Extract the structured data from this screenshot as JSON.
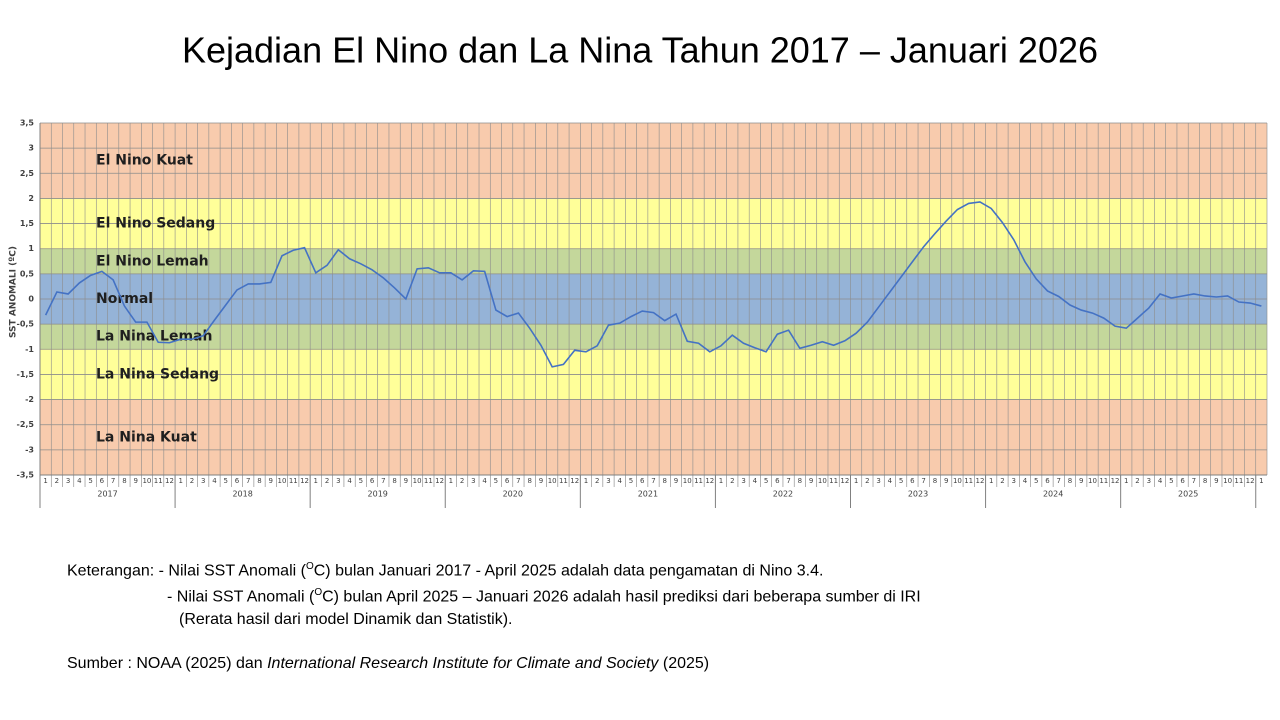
{
  "chart_data": {
    "type": "line",
    "title": "Kejadian El Nino dan La Nina Tahun 2017 – Januari 2026",
    "y_label": "SST ANOMALI (ºC)",
    "categories": [
      "1",
      "2",
      "3",
      "4",
      "5",
      "6",
      "7",
      "8",
      "9",
      "10",
      "11",
      "12",
      "1",
      "2",
      "3",
      "4",
      "5",
      "6",
      "7",
      "8",
      "9",
      "10",
      "11",
      "12",
      "1",
      "2",
      "3",
      "4",
      "5",
      "6",
      "7",
      "8",
      "9",
      "10",
      "11",
      "12",
      "1",
      "2",
      "3",
      "4",
      "5",
      "6",
      "7",
      "8",
      "9",
      "10",
      "11",
      "12",
      "1",
      "2",
      "3",
      "4",
      "5",
      "6",
      "7",
      "8",
      "9",
      "10",
      "11",
      "12",
      "1",
      "2",
      "3",
      "4",
      "5",
      "6",
      "7",
      "8",
      "9",
      "10",
      "11",
      "12",
      "1",
      "2",
      "3",
      "4",
      "5",
      "6",
      "7",
      "8",
      "9",
      "10",
      "11",
      "12",
      "1",
      "2",
      "3",
      "4",
      "5",
      "6",
      "7",
      "8",
      "9",
      "10",
      "11",
      "12",
      "1",
      "2",
      "3",
      "4",
      "5",
      "6",
      "7",
      "8",
      "9",
      "10",
      "11",
      "12",
      "1"
    ],
    "year_groups": [
      "2017",
      "2018",
      "2019",
      "2020",
      "2021",
      "2022",
      "2023",
      "2024",
      "2025"
    ],
    "series": [
      {
        "name": "SST Anomali",
        "color": "#4472c4",
        "values": [
          -0.32,
          0.14,
          0.1,
          0.32,
          0.47,
          0.55,
          0.38,
          -0.14,
          -0.46,
          -0.46,
          -0.86,
          -0.87,
          -0.8,
          -0.8,
          -0.73,
          -0.42,
          -0.12,
          0.18,
          0.3,
          0.3,
          0.33,
          0.86,
          0.97,
          1.02,
          0.52,
          0.67,
          0.98,
          0.8,
          0.7,
          0.58,
          0.42,
          0.22,
          0.0,
          0.6,
          0.62,
          0.52,
          0.52,
          0.38,
          0.56,
          0.55,
          -0.22,
          -0.35,
          -0.28,
          -0.58,
          -0.92,
          -1.35,
          -1.3,
          -1.02,
          -1.05,
          -0.93,
          -0.52,
          -0.48,
          -0.35,
          -0.24,
          -0.27,
          -0.43,
          -0.3,
          -0.84,
          -0.88,
          -1.05,
          -0.93,
          -0.72,
          -0.88,
          -0.97,
          -1.05,
          -0.7,
          -0.62,
          -0.98,
          -0.92,
          -0.85,
          -0.92,
          -0.83,
          -0.68,
          -0.46,
          -0.16,
          0.14,
          0.44,
          0.74,
          1.04,
          1.3,
          1.55,
          1.78,
          1.9,
          1.93,
          1.8,
          1.52,
          1.18,
          0.74,
          0.4,
          0.16,
          0.05,
          -0.12,
          -0.22,
          -0.28,
          -0.38,
          -0.54,
          -0.58,
          -0.38,
          -0.18,
          0.1,
          0.02,
          0.06,
          0.1,
          0.06,
          0.04,
          0.06,
          -0.06,
          -0.08,
          -0.14
        ]
      }
    ],
    "ylim": [
      -3.5,
      3.5
    ],
    "yticks": [
      {
        "value": 3.5,
        "label": "3,5"
      },
      3,
      {
        "value": 2.5,
        "label": "2,5"
      },
      2,
      {
        "value": 1.5,
        "label": "1,5"
      },
      1,
      {
        "value": 0.5,
        "label": "0,5"
      },
      0,
      {
        "value": -0.5,
        "label": "-0,5"
      },
      -1,
      {
        "value": -1.5,
        "label": "-1,5"
      },
      -2,
      {
        "value": -2.5,
        "label": "-2,5"
      },
      -3,
      {
        "value": -3.5,
        "label": "-3,5"
      }
    ],
    "grid": true,
    "bands": [
      {
        "label": "El Nino Kuat",
        "from": 2,
        "to": 3.5,
        "color": "#f8cbad"
      },
      {
        "label": "El Nino Sedang",
        "from": 1,
        "to": 2,
        "color": "#ffff99"
      },
      {
        "label": "El Nino Lemah",
        "from": 0.5,
        "to": 1,
        "color": "#c4d79b"
      },
      {
        "label": "Normal",
        "from": -0.5,
        "to": 0.5,
        "color": "#95b3d7"
      },
      {
        "label": "La Nina Lemah",
        "from": -1,
        "to": -0.5,
        "color": "#c4d79b"
      },
      {
        "label": "La Nina Sedang",
        "from": -2,
        "to": -1,
        "color": "#ffff99"
      },
      {
        "label": "La Nina Kuat",
        "from": -3.5,
        "to": -2,
        "color": "#f8cbad"
      }
    ]
  },
  "notes": {
    "label": "Keterangan:",
    "lines": [
      {
        "pre": "- Nilai SST Anomali (",
        "sup": "O",
        "post": "C) bulan Januari 2017 - April 2025 adalah data pengamatan di Nino 3.4."
      },
      {
        "pre": "- Nilai SST Anomali (",
        "sup": "O",
        "post": "C) bulan April 2025 – Januari 2026 adalah hasil prediksi dari beberapa sumber di IRI"
      }
    ],
    "cont": "(Rerata hasil dari model Dinamik dan Statistik).",
    "source_pre": "Sumber : NOAA (2025) dan ",
    "source_italic": "International Research Institute for Climate and Society",
    "source_post": " (2025)"
  }
}
